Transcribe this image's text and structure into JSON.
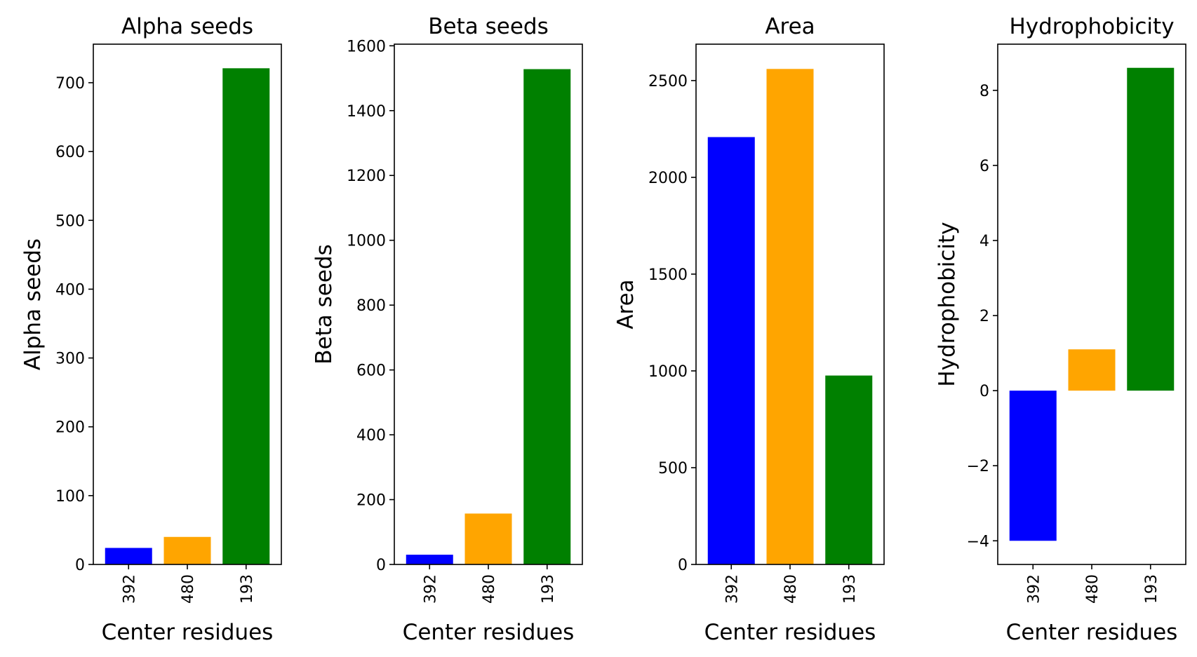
{
  "chart_data": [
    {
      "type": "bar",
      "title": "Alpha seeds",
      "xlabel": "Center residues",
      "ylabel": "Alpha seeds",
      "categories": [
        "392",
        "480",
        "193"
      ],
      "values": [
        24,
        40,
        721
      ],
      "colors": [
        "#0000ff",
        "#ffa500",
        "#008000"
      ],
      "ylim": [
        0,
        756
      ],
      "yticks": [
        0,
        100,
        200,
        300,
        400,
        500,
        600,
        700
      ],
      "ytick_labels": [
        "0",
        "100",
        "200",
        "300",
        "400",
        "500",
        "600",
        "700"
      ],
      "grid": false
    },
    {
      "type": "bar",
      "title": "Beta seeds",
      "xlabel": "Center residues",
      "ylabel": "Beta seeds",
      "categories": [
        "392",
        "480",
        "193"
      ],
      "values": [
        30,
        157,
        1528
      ],
      "colors": [
        "#0000ff",
        "#ffa500",
        "#008000"
      ],
      "ylim": [
        0,
        1605
      ],
      "yticks": [
        0,
        200,
        400,
        600,
        800,
        1000,
        1200,
        1400,
        1600
      ],
      "ytick_labels": [
        "0",
        "200",
        "400",
        "600",
        "800",
        "1000",
        "1200",
        "1400",
        "1600"
      ],
      "grid": false
    },
    {
      "type": "bar",
      "title": "Area",
      "xlabel": "Center residues",
      "ylabel": "Area",
      "categories": [
        "392",
        "480",
        "193"
      ],
      "values": [
        2208,
        2560,
        976
      ],
      "colors": [
        "#0000ff",
        "#ffa500",
        "#008000"
      ],
      "ylim": [
        0,
        2688
      ],
      "yticks": [
        0,
        500,
        1000,
        1500,
        2000,
        2500
      ],
      "ytick_labels": [
        "0",
        "500",
        "1000",
        "1500",
        "2000",
        "2500"
      ],
      "grid": false
    },
    {
      "type": "bar",
      "title": "Hydrophobicity",
      "xlabel": "Center residues",
      "ylabel": "Hydrophobicity",
      "categories": [
        "392",
        "480",
        "193"
      ],
      "values": [
        -4.0,
        1.1,
        8.6
      ],
      "colors": [
        "#0000ff",
        "#ffa500",
        "#008000"
      ],
      "ylim": [
        -4.63,
        9.23
      ],
      "yticks": [
        -4,
        -2,
        0,
        2,
        4,
        6,
        8
      ],
      "ytick_labels": [
        "−4",
        "−2",
        "0",
        "2",
        "4",
        "6",
        "8"
      ],
      "grid": false
    }
  ]
}
